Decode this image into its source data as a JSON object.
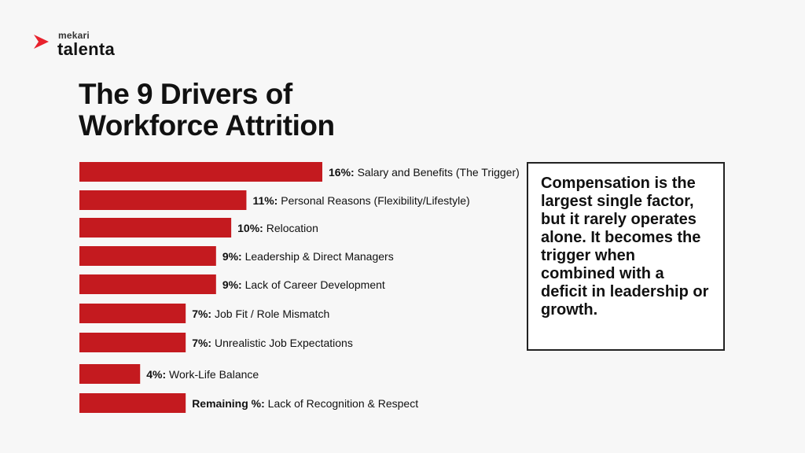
{
  "brand": {
    "small": "mekari",
    "name": "talenta",
    "accent": "#e8222d"
  },
  "title_lines": [
    "The 9 Drivers of",
    "Workforce Attrition"
  ],
  "callout": "Compensation is the largest single factor, but it rarely operates alone. It becomes the trigger when combined with a deficit in leadership or growth.",
  "bar_color": "#c41a1f",
  "chart_data": {
    "type": "bar",
    "orientation": "horizontal",
    "title": "The 9 Drivers of Workforce Attrition",
    "xlabel": "",
    "ylabel": "",
    "grid": false,
    "legend": "none",
    "categories": [
      "Salary and Benefits (The Trigger)",
      "Personal Reasons (Flexibility/Lifestyle)",
      "Relocation",
      "Leadership & Direct Managers",
      "Lack of Career Development",
      "Job Fit / Role Mismatch",
      "Unrealistic Job Expectations",
      "Work-Life Balance",
      "Lack of Recognition & Respect"
    ],
    "value_labels": [
      "16%:",
      "11%:",
      "10%:",
      "9%:",
      "9%:",
      "7%:",
      "7%:",
      "4%:",
      "Remaining %:"
    ],
    "values": [
      16,
      11,
      10,
      9,
      9,
      7,
      7,
      4,
      7
    ],
    "xlim": [
      0,
      16
    ]
  }
}
